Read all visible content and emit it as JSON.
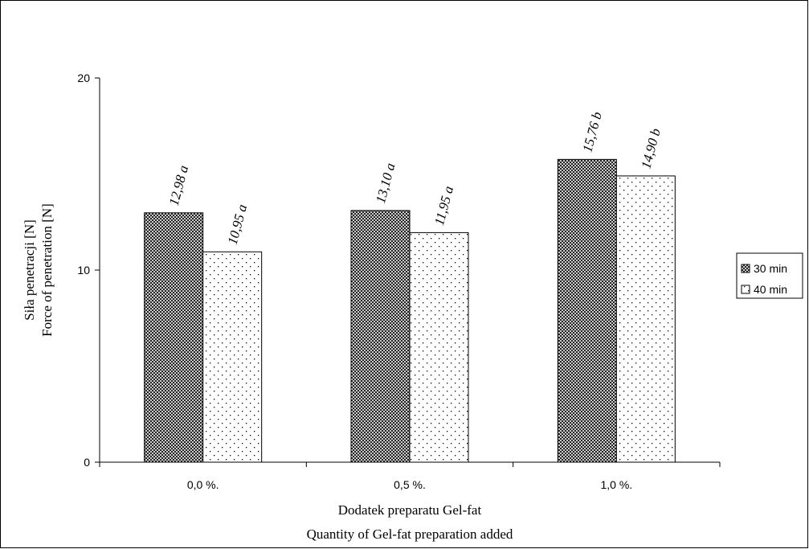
{
  "chart_data": {
    "type": "bar",
    "title": "",
    "categories": [
      "0,0 %.",
      "0,5 %.",
      "1,0 %."
    ],
    "series": [
      {
        "name": "30 min",
        "values": [
          12.98,
          13.1,
          15.76
        ],
        "labels": [
          "12,98 a",
          "13,10 a",
          "15,76 b"
        ],
        "pattern": "crosshatch",
        "legend_symbol": "⊠"
      },
      {
        "name": "40 min",
        "values": [
          10.95,
          11.95,
          14.9
        ],
        "labels": [
          "10,95 a",
          "11,95 a",
          "14,90 b"
        ],
        "pattern": "dots",
        "legend_symbol": "⊡"
      }
    ],
    "ylim": [
      0,
      20
    ],
    "yticks": [
      "0",
      "10",
      "20"
    ],
    "ytick_values": [
      0,
      10,
      20
    ],
    "ylabel_line1": "Siła penetracji [N]",
    "ylabel_line2": "Force of penetration [N]",
    "xlabel_line1": "Dodatek preparatu Gel-fat",
    "xlabel_line2": "Quantity of Gel-fat preparation added",
    "legend_position": "right",
    "grid": false,
    "colors": {
      "border": "#000000",
      "bar_fill": "#ffffff",
      "pattern_ink": "#000000"
    }
  }
}
